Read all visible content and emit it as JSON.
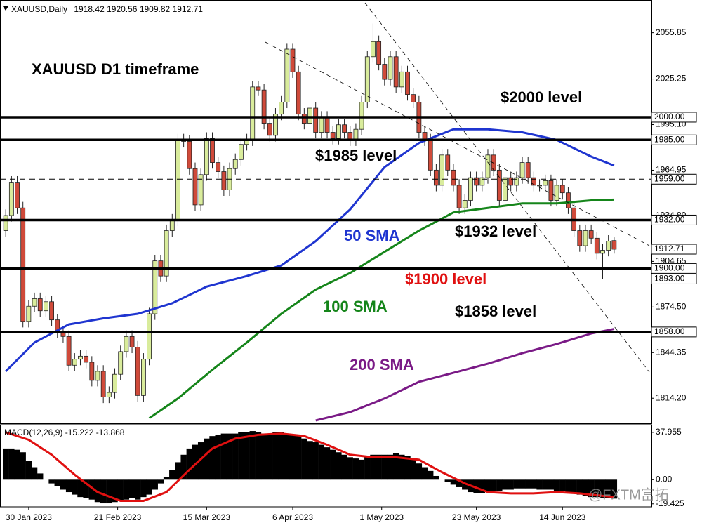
{
  "chart_data": [
    {
      "type": "candlestick",
      "symbol": "XAUUSD,Daily",
      "title": "XAUUSD D1 timeframe",
      "xlim": [
        -1,
        112.5
      ],
      "ylim": [
        1797.6,
        2077.5
      ],
      "xticks": [
        {
          "value": 4,
          "label": "30 Jan 2023"
        },
        {
          "value": 19.5,
          "label": "21 Feb 2023"
        },
        {
          "value": 35,
          "label": "15 Mar 2023"
        },
        {
          "value": 50,
          "label": "6 Apr 2023"
        },
        {
          "value": 65.5,
          "label": "1 May 2023"
        },
        {
          "value": 82,
          "label": "23 May 2023"
        },
        {
          "value": 97,
          "label": "14 Jun 2023"
        }
      ],
      "yticks": [
        2055.85,
        2025.25,
        {
          "value": 1995.1,
          "label": "1995.10"
        },
        1964.95,
        {
          "value": 1934.8,
          "label": "1934.80"
        },
        1904.65,
        {
          "value": 1874.5,
          "label": "1874.50"
        },
        1844.35,
        {
          "value": 1814.2,
          "label": "1814.20"
        }
      ],
      "up_color": "#d9ec9c",
      "down_color": "#d04a3a",
      "open": [
        1925,
        1935,
        1957,
        1940,
        1865,
        1875,
        1880,
        1872,
        1878,
        1866,
        1858,
        1855,
        1836,
        1840,
        1842,
        1838,
        1826,
        1832,
        1815,
        1818,
        1830,
        1845,
        1855,
        1848,
        1816,
        1840,
        1870,
        1905,
        1895,
        1925,
        1932,
        1985,
        1984,
        1966,
        1942,
        1962,
        1986,
        1970,
        1964,
        1952,
        1966,
        1972,
        1982,
        1985,
        2020,
        2018,
        1996,
        1988,
        2002,
        2010,
        2045,
        2030,
        2002,
        1996,
        2006,
        1990,
        2000,
        1990,
        1986,
        1995,
        1990,
        1985,
        1992,
        2010,
        2040,
        2050,
        2035,
        2025,
        2040,
        2020,
        2030,
        2015,
        2010,
        1990,
        1985,
        1965,
        1955,
        1975,
        1965,
        1955,
        1940,
        1945,
        1960,
        1955,
        1960,
        1975,
        1965,
        1945,
        1960,
        1955,
        1960,
        1970,
        1960,
        1955,
        1955,
        1958,
        1945,
        1955,
        1950,
        1940,
        1925,
        1915,
        1925,
        1920,
        1910,
        1912,
        1918.42
      ],
      "high": [
        1939,
        1961,
        1961,
        1944,
        1879,
        1884,
        1884,
        1882,
        1882,
        1870,
        1862,
        1859,
        1844,
        1846,
        1846,
        1842,
        1836,
        1836,
        1822,
        1834,
        1849,
        1859,
        1859,
        1852,
        1844,
        1874,
        1909,
        1909,
        1929,
        1936,
        1989,
        1989,
        1988,
        1970,
        1966,
        1990,
        1990,
        1974,
        1968,
        1970,
        1976,
        1986,
        1989,
        2024,
        2024,
        2022,
        2000,
        2006,
        2014,
        2049,
        2049,
        2034,
        2006,
        2010,
        2010,
        2004,
        2004,
        1994,
        1999,
        1999,
        1994,
        1996,
        2014,
        2044,
        2062,
        2054,
        2039,
        2044,
        2044,
        2034,
        2034,
        2019,
        2014,
        1994,
        1989,
        1969,
        1979,
        1979,
        1969,
        1959,
        1949,
        1964,
        1964,
        1964,
        1979,
        1979,
        1969,
        1964,
        1964,
        1964,
        1974,
        1974,
        1964,
        1959,
        1962,
        1962,
        1959,
        1959,
        1954,
        1944,
        1929,
        1929,
        1929,
        1924,
        1916,
        1922,
        1920.56
      ],
      "low": [
        1921,
        1931,
        1936,
        1861,
        1861,
        1871,
        1868,
        1868,
        1862,
        1854,
        1851,
        1832,
        1832,
        1836,
        1834,
        1822,
        1822,
        1811,
        1811,
        1814,
        1826,
        1841,
        1844,
        1812,
        1812,
        1836,
        1866,
        1891,
        1891,
        1921,
        1928,
        1980,
        1962,
        1938,
        1938,
        1958,
        1966,
        1960,
        1948,
        1948,
        1962,
        1968,
        1978,
        1981,
        2014,
        1992,
        1984,
        1984,
        1998,
        2006,
        2026,
        1998,
        1992,
        1992,
        1986,
        1986,
        1986,
        1982,
        1982,
        1986,
        1981,
        1981,
        1988,
        2006,
        2036,
        2031,
        2021,
        2021,
        2016,
        2016,
        2011,
        2006,
        1986,
        1981,
        1961,
        1951,
        1951,
        1961,
        1951,
        1936,
        1936,
        1941,
        1951,
        1951,
        1956,
        1961,
        1941,
        1941,
        1951,
        1951,
        1956,
        1956,
        1951,
        1951,
        1951,
        1941,
        1941,
        1946,
        1936,
        1921,
        1911,
        1911,
        1916,
        1906,
        1893,
        1908,
        1909.82
      ],
      "close": [
        1935,
        1957,
        1940,
        1865,
        1875,
        1880,
        1872,
        1878,
        1866,
        1858,
        1855,
        1836,
        1840,
        1842,
        1838,
        1826,
        1832,
        1815,
        1818,
        1830,
        1845,
        1855,
        1848,
        1816,
        1840,
        1870,
        1905,
        1895,
        1925,
        1932,
        1985,
        1984,
        1966,
        1942,
        1962,
        1986,
        1970,
        1964,
        1952,
        1966,
        1972,
        1982,
        1985,
        2020,
        2018,
        1996,
        1988,
        2002,
        2010,
        2045,
        2030,
        2002,
        1996,
        2006,
        1990,
        2000,
        1990,
        1986,
        1995,
        1990,
        1985,
        1992,
        2010,
        2040,
        2050,
        2035,
        2025,
        2040,
        2020,
        2030,
        2015,
        2010,
        1990,
        1985,
        1965,
        1955,
        1975,
        1965,
        1955,
        1940,
        1945,
        1960,
        1955,
        1960,
        1975,
        1965,
        1945,
        1960,
        1955,
        1960,
        1970,
        1960,
        1955,
        1955,
        1958,
        1945,
        1955,
        1950,
        1940,
        1925,
        1915,
        1925,
        1920,
        1910,
        1912,
        1918,
        1912.71
      ],
      "series": [
        {
          "name": "50 SMA",
          "color": "#1f35d0",
          "x": [
            0,
            5,
            11,
            17,
            23,
            29,
            35,
            42,
            48,
            54,
            60,
            66,
            72,
            78,
            84,
            90,
            96,
            102,
            106
          ],
          "values": [
            1832,
            1851,
            1863,
            1867,
            1870,
            1877,
            1888,
            1895,
            1902,
            1918,
            1939,
            1967,
            1983,
            1992,
            1992,
            1990,
            1985,
            1974,
            1968
          ]
        },
        {
          "name": "100 SMA",
          "color": "#15851a",
          "x": [
            25,
            30,
            36,
            42,
            48,
            54,
            60,
            66,
            72,
            78,
            84,
            90,
            96,
            102,
            106
          ],
          "values": [
            1801,
            1814,
            1833,
            1851,
            1870,
            1886,
            1897,
            1911,
            1925,
            1937,
            1940,
            1943,
            1943,
            1945,
            1945.5
          ]
        },
        {
          "name": "200 SMA",
          "color": "#7a1a86",
          "x": [
            54,
            60,
            66,
            72,
            78,
            84,
            90,
            96,
            102,
            106
          ],
          "values": [
            1799.5,
            1805,
            1814,
            1825,
            1831,
            1837,
            1844,
            1850,
            1857,
            1860
          ]
        }
      ],
      "levels": [
        {
          "value": 2000,
          "label": "2000.00",
          "style": "solid"
        },
        {
          "value": 1985,
          "label": "1985.00",
          "style": "solid"
        },
        {
          "value": 1959,
          "label": "1959.00",
          "style": "dashed"
        },
        {
          "value": 1932,
          "label": "1932.00",
          "style": "solid"
        },
        {
          "value": 1900,
          "label": "1900.00",
          "style": "solid"
        },
        {
          "value": 1893,
          "label": "1893.00",
          "style": "dashed"
        },
        {
          "value": 1858,
          "label": "1858.00",
          "style": "solid"
        }
      ],
      "annotations": [
        {
          "text": "$2000 level",
          "color": "#000000"
        },
        {
          "text": "$1985 level",
          "color": "#000000"
        },
        {
          "text": "$1932 level",
          "color": "#000000"
        },
        {
          "text": "$1900 level",
          "color": "#e01010"
        },
        {
          "text": "$1858 level",
          "color": "#000000"
        }
      ]
    },
    {
      "type": "macd",
      "title": "MACD(12,26,9)",
      "ylim": [
        -21.8,
        44.1
      ],
      "yticks": [
        37.955,
        {
          "value": 0,
          "label": "0.00"
        },
        -19.425
      ],
      "histogram": {
        "color": "#000000",
        "values": [
          25,
          25,
          24,
          22,
          15,
          10,
          5,
          0,
          -3,
          -5,
          -8,
          -10,
          -12,
          -14,
          -15,
          -16,
          -18,
          -19,
          -19,
          -18,
          -17,
          -16,
          -15,
          -16,
          -14,
          -12,
          -8,
          -3,
          2,
          8,
          14,
          20,
          25,
          28,
          30,
          33,
          35,
          36,
          37,
          37,
          37,
          38,
          38,
          39,
          38,
          37,
          37,
          38,
          38,
          37,
          36,
          35,
          33,
          31,
          30,
          28,
          26,
          24,
          22,
          20,
          18,
          17,
          16,
          18,
          20,
          20,
          20,
          20,
          21,
          20,
          19,
          17,
          13,
          10,
          7,
          3,
          0,
          -2,
          -4,
          -6,
          -8,
          -10,
          -11,
          -11,
          -10,
          -9,
          -9,
          -8,
          -8,
          -7,
          -7,
          -7,
          -7,
          -8,
          -8,
          -8,
          -9,
          -9,
          -10,
          -11,
          -12,
          -13,
          -14,
          -14,
          -15,
          -15,
          -15.222
        ]
      },
      "signal": {
        "color": "#e01010",
        "x": [
          0,
          4,
          8,
          12,
          16,
          20,
          24,
          28,
          32,
          36,
          40,
          44,
          48,
          52,
          56,
          60,
          64,
          68,
          72,
          76,
          80,
          84,
          88,
          92,
          96,
          100,
          104,
          106
        ],
        "values": [
          38,
          32,
          20,
          4,
          -10,
          -17,
          -17,
          -10,
          8,
          25,
          33,
          36,
          37,
          35,
          28,
          20,
          18,
          18,
          16,
          6,
          -3,
          -10,
          -11,
          -11,
          -10,
          -11,
          -13,
          -13.868
        ]
      }
    }
  ],
  "watermark": "@FXTM富拓"
}
